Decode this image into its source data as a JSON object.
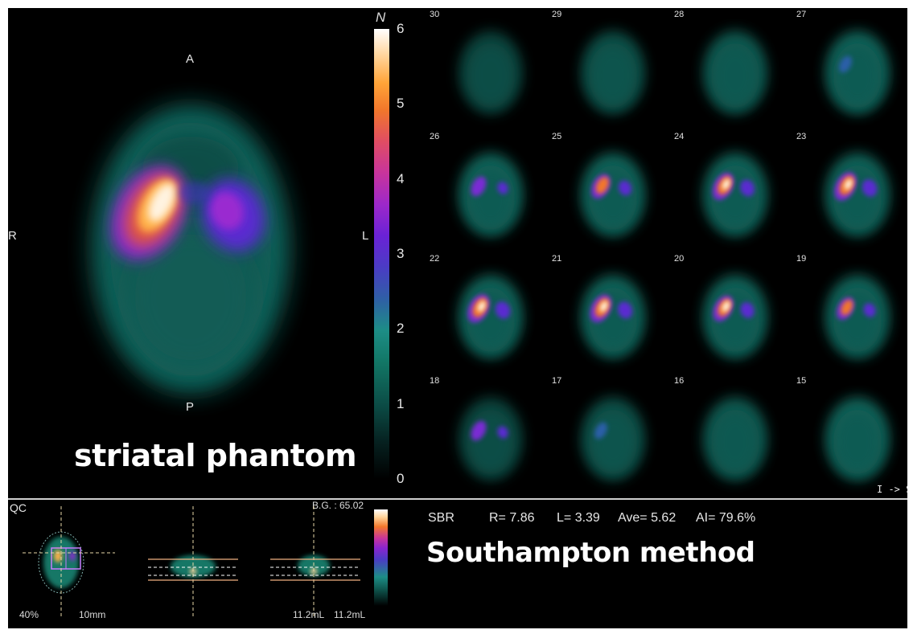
{
  "main_view": {
    "orientation": {
      "anterior": "A",
      "posterior": "P",
      "right": "R",
      "left": "L"
    },
    "title": "striatal phantom"
  },
  "color_scale": {
    "unit": "N",
    "ticks": [
      "6",
      "5",
      "4",
      "3",
      "2",
      "1",
      "0"
    ],
    "tick_values": [
      6,
      5,
      4,
      3,
      2,
      1,
      0
    ],
    "min": 0,
    "max": 6,
    "colormap": [
      "#000000",
      "#127766",
      "#4a3cc4",
      "#9d28c9",
      "#f2772b",
      "#ffffff"
    ]
  },
  "montage": {
    "direction": "I -> S",
    "slices": [
      {
        "label": "30",
        "uptake": 0.0
      },
      {
        "label": "29",
        "uptake": 0.0
      },
      {
        "label": "28",
        "uptake": 0.0
      },
      {
        "label": "27",
        "uptake": 0.12
      },
      {
        "label": "26",
        "uptake": 0.35
      },
      {
        "label": "25",
        "uptake": 0.7
      },
      {
        "label": "24",
        "uptake": 0.9
      },
      {
        "label": "23",
        "uptake": 1.0
      },
      {
        "label": "22",
        "uptake": 1.0
      },
      {
        "label": "21",
        "uptake": 0.95
      },
      {
        "label": "20",
        "uptake": 0.8
      },
      {
        "label": "19",
        "uptake": 0.55
      },
      {
        "label": "18",
        "uptake": 0.35
      },
      {
        "label": "17",
        "uptake": 0.12
      },
      {
        "label": "16",
        "uptake": 0.0
      },
      {
        "label": "15",
        "uptake": 0.0
      }
    ]
  },
  "qc": {
    "label": "QC",
    "bg": "B.G. : 65.02",
    "threshold": "40%",
    "thickness": "10mm",
    "volume_right": "11.2mL",
    "volume_left": "11.2mL"
  },
  "results": {
    "sbr_label": "SBR",
    "r": "R= 7.86",
    "l": "L= 3.39",
    "ave": "Ave= 5.62",
    "ai": "AI= 79.6%",
    "method": "Southampton method"
  }
}
